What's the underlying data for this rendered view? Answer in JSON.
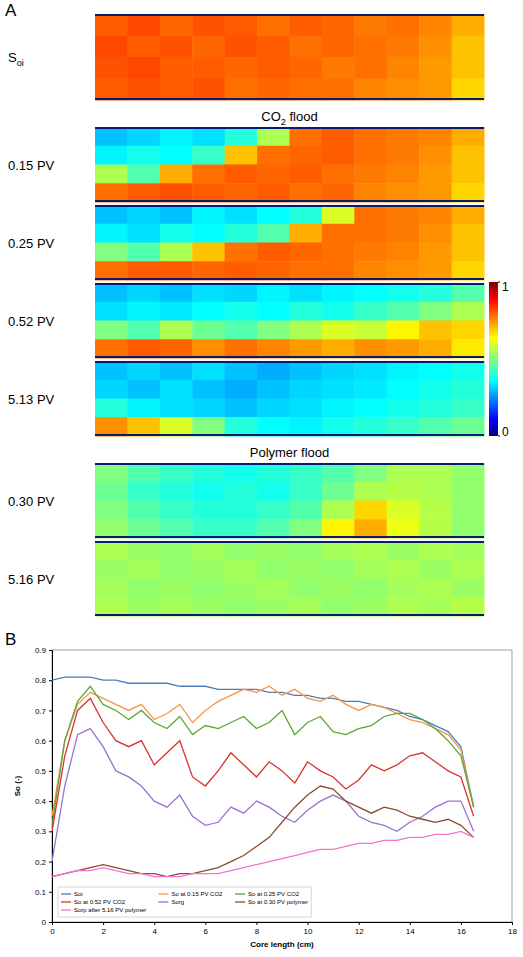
{
  "chart_data": [
    {
      "type": "heatmap",
      "panel_label": "A",
      "colorbar": {
        "range": [
          0,
          1
        ],
        "ticks": [
          0,
          1
        ]
      },
      "groups": [
        {
          "maps": [
            {
              "label": [
                {
                  "text": "S"
                },
                {
                  "text": "oi",
                  "sub": true
                }
              ],
              "cells": [
                [
                  0.8,
                  0.82,
                  0.79,
                  0.81,
                  0.8,
                  0.78,
                  0.8,
                  0.79,
                  0.77,
                  0.78,
                  0.76,
                  0.72
                ],
                [
                  0.82,
                  0.8,
                  0.81,
                  0.79,
                  0.81,
                  0.8,
                  0.78,
                  0.79,
                  0.78,
                  0.77,
                  0.75,
                  0.7
                ],
                [
                  0.81,
                  0.82,
                  0.8,
                  0.8,
                  0.79,
                  0.8,
                  0.79,
                  0.77,
                  0.78,
                  0.76,
                  0.74,
                  0.7
                ],
                [
                  0.8,
                  0.81,
                  0.8,
                  0.81,
                  0.78,
                  0.79,
                  0.78,
                  0.78,
                  0.76,
                  0.75,
                  0.74,
                  0.68
                ]
              ]
            }
          ]
        },
        {
          "title": [
            {
              "text": "CO"
            },
            {
              "text": "2",
              "sub": true
            },
            {
              "text": " flood"
            }
          ],
          "maps": [
            {
              "label": [
                {
                  "text": "0.15 PV"
                }
              ],
              "cells": [
                [
                  0.3,
                  0.32,
                  0.35,
                  0.33,
                  0.4,
                  0.55,
                  0.78,
                  0.8,
                  0.78,
                  0.77,
                  0.76,
                  0.72
                ],
                [
                  0.35,
                  0.38,
                  0.36,
                  0.42,
                  0.7,
                  0.78,
                  0.79,
                  0.8,
                  0.78,
                  0.77,
                  0.75,
                  0.7
                ],
                [
                  0.55,
                  0.45,
                  0.72,
                  0.78,
                  0.8,
                  0.79,
                  0.8,
                  0.78,
                  0.77,
                  0.76,
                  0.74,
                  0.7
                ],
                [
                  0.78,
                  0.8,
                  0.81,
                  0.8,
                  0.79,
                  0.8,
                  0.78,
                  0.79,
                  0.76,
                  0.75,
                  0.74,
                  0.68
                ]
              ]
            },
            {
              "label": [
                {
                  "text": "0.25 PV"
                }
              ],
              "cells": [
                [
                  0.3,
                  0.32,
                  0.3,
                  0.35,
                  0.33,
                  0.36,
                  0.4,
                  0.6,
                  0.78,
                  0.77,
                  0.76,
                  0.72
                ],
                [
                  0.35,
                  0.33,
                  0.38,
                  0.36,
                  0.4,
                  0.45,
                  0.72,
                  0.78,
                  0.78,
                  0.77,
                  0.75,
                  0.7
                ],
                [
                  0.5,
                  0.45,
                  0.55,
                  0.7,
                  0.78,
                  0.8,
                  0.79,
                  0.78,
                  0.77,
                  0.76,
                  0.74,
                  0.7
                ],
                [
                  0.78,
                  0.8,
                  0.8,
                  0.79,
                  0.8,
                  0.79,
                  0.78,
                  0.78,
                  0.76,
                  0.75,
                  0.74,
                  0.68
                ]
              ]
            },
            {
              "label": [
                {
                  "text": "0.52 PV"
                }
              ],
              "cells": [
                [
                  0.3,
                  0.32,
                  0.3,
                  0.33,
                  0.32,
                  0.35,
                  0.33,
                  0.35,
                  0.36,
                  0.38,
                  0.4,
                  0.45
                ],
                [
                  0.33,
                  0.35,
                  0.34,
                  0.36,
                  0.38,
                  0.36,
                  0.4,
                  0.38,
                  0.42,
                  0.45,
                  0.5,
                  0.55
                ],
                [
                  0.5,
                  0.45,
                  0.55,
                  0.48,
                  0.45,
                  0.5,
                  0.55,
                  0.6,
                  0.58,
                  0.65,
                  0.7,
                  0.68
                ],
                [
                  0.78,
                  0.8,
                  0.79,
                  0.75,
                  0.78,
                  0.76,
                  0.74,
                  0.72,
                  0.75,
                  0.74,
                  0.72,
                  0.66
                ]
              ]
            },
            {
              "label": [
                {
                  "text": "5.13 PV"
                }
              ],
              "cells": [
                [
                  0.3,
                  0.32,
                  0.3,
                  0.33,
                  0.3,
                  0.28,
                  0.3,
                  0.32,
                  0.33,
                  0.35,
                  0.36,
                  0.38
                ],
                [
                  0.32,
                  0.3,
                  0.33,
                  0.3,
                  0.28,
                  0.3,
                  0.32,
                  0.33,
                  0.34,
                  0.36,
                  0.38,
                  0.4
                ],
                [
                  0.4,
                  0.35,
                  0.33,
                  0.32,
                  0.3,
                  0.32,
                  0.33,
                  0.35,
                  0.36,
                  0.38,
                  0.4,
                  0.42
                ],
                [
                  0.75,
                  0.7,
                  0.6,
                  0.5,
                  0.4,
                  0.36,
                  0.35,
                  0.38,
                  0.4,
                  0.42,
                  0.45,
                  0.48
                ]
              ]
            }
          ]
        },
        {
          "title": [
            {
              "text": "Polymer flood"
            }
          ],
          "maps": [
            {
              "label": [
                {
                  "text": "0.30 PV"
                }
              ],
              "cells": [
                [
                  0.5,
                  0.45,
                  0.42,
                  0.4,
                  0.38,
                  0.4,
                  0.42,
                  0.45,
                  0.5,
                  0.55,
                  0.55,
                  0.52
                ],
                [
                  0.48,
                  0.42,
                  0.4,
                  0.38,
                  0.4,
                  0.38,
                  0.42,
                  0.48,
                  0.55,
                  0.56,
                  0.55,
                  0.52
                ],
                [
                  0.5,
                  0.45,
                  0.42,
                  0.4,
                  0.4,
                  0.42,
                  0.45,
                  0.55,
                  0.68,
                  0.6,
                  0.56,
                  0.52
                ],
                [
                  0.52,
                  0.48,
                  0.45,
                  0.42,
                  0.42,
                  0.45,
                  0.5,
                  0.65,
                  0.72,
                  0.62,
                  0.56,
                  0.52
                ]
              ]
            },
            {
              "label": [
                {
                  "text": "5.16 PV"
                }
              ],
              "cells": [
                [
                  0.55,
                  0.53,
                  0.52,
                  0.54,
                  0.52,
                  0.53,
                  0.52,
                  0.54,
                  0.55,
                  0.53,
                  0.55,
                  0.54
                ],
                [
                  0.53,
                  0.54,
                  0.52,
                  0.53,
                  0.54,
                  0.52,
                  0.53,
                  0.52,
                  0.54,
                  0.55,
                  0.53,
                  0.55
                ],
                [
                  0.54,
                  0.52,
                  0.53,
                  0.52,
                  0.53,
                  0.54,
                  0.52,
                  0.53,
                  0.52,
                  0.54,
                  0.55,
                  0.53
                ],
                [
                  0.55,
                  0.53,
                  0.54,
                  0.53,
                  0.52,
                  0.53,
                  0.54,
                  0.52,
                  0.53,
                  0.55,
                  0.54,
                  0.56
                ]
              ]
            }
          ]
        }
      ]
    },
    {
      "type": "line",
      "panel_label": "B",
      "x_label": "Core length (cm)",
      "y_label": "So (-)",
      "xlim": [
        0,
        18
      ],
      "xticks": [
        0,
        2,
        4,
        6,
        8,
        10,
        12,
        14,
        16,
        18
      ],
      "ylim": [
        0,
        0.9
      ],
      "yticks": [
        0,
        0.1,
        0.2,
        0.3,
        0.4,
        0.5,
        0.6,
        0.7,
        0.8,
        0.9
      ],
      "grid": false,
      "legend": "lower left",
      "x": [
        0,
        0.5,
        1,
        1.5,
        2,
        2.5,
        3,
        3.5,
        4,
        4.5,
        5,
        5.5,
        6,
        6.5,
        7,
        7.5,
        8,
        8.5,
        9,
        9.5,
        10,
        10.5,
        11,
        11.5,
        12,
        12.5,
        13,
        13.5,
        14,
        14.5,
        15,
        15.5,
        16,
        16.5
      ],
      "series": [
        {
          "name": "Soi",
          "color": "#4a7ebb",
          "values": [
            0.8,
            0.81,
            0.81,
            0.81,
            0.8,
            0.8,
            0.79,
            0.79,
            0.79,
            0.79,
            0.78,
            0.78,
            0.78,
            0.77,
            0.77,
            0.77,
            0.77,
            0.76,
            0.76,
            0.75,
            0.75,
            0.74,
            0.74,
            0.73,
            0.73,
            0.72,
            0.71,
            0.7,
            0.68,
            0.67,
            0.65,
            0.63,
            0.58,
            0.38
          ]
        },
        {
          "name": "So at 0.15 PV CO2",
          "color": "#f79646",
          "values": [
            0.35,
            0.6,
            0.72,
            0.76,
            0.74,
            0.72,
            0.7,
            0.72,
            0.67,
            0.69,
            0.72,
            0.66,
            0.7,
            0.73,
            0.75,
            0.77,
            0.76,
            0.78,
            0.75,
            0.77,
            0.74,
            0.73,
            0.75,
            0.72,
            0.7,
            0.72,
            0.71,
            0.69,
            0.67,
            0.66,
            0.64,
            0.62,
            0.57,
            0.38
          ]
        },
        {
          "name": "So at 0.25 PV CO2",
          "color": "#5aa832",
          "values": [
            0.32,
            0.6,
            0.73,
            0.78,
            0.72,
            0.7,
            0.67,
            0.7,
            0.66,
            0.64,
            0.68,
            0.62,
            0.65,
            0.64,
            0.66,
            0.68,
            0.64,
            0.66,
            0.7,
            0.62,
            0.66,
            0.68,
            0.63,
            0.62,
            0.64,
            0.65,
            0.68,
            0.69,
            0.69,
            0.67,
            0.64,
            0.6,
            0.55,
            0.38
          ]
        },
        {
          "name": "So at 0.52 PV CO2",
          "color": "#d9322e",
          "values": [
            0.3,
            0.55,
            0.7,
            0.74,
            0.66,
            0.6,
            0.58,
            0.6,
            0.52,
            0.56,
            0.6,
            0.48,
            0.45,
            0.5,
            0.56,
            0.52,
            0.48,
            0.53,
            0.5,
            0.46,
            0.53,
            0.5,
            0.48,
            0.44,
            0.47,
            0.52,
            0.5,
            0.52,
            0.55,
            0.56,
            0.53,
            0.5,
            0.48,
            0.35
          ]
        },
        {
          "name": "Sorg",
          "color": "#9b72cf",
          "values": [
            0.2,
            0.45,
            0.62,
            0.64,
            0.58,
            0.5,
            0.48,
            0.45,
            0.4,
            0.38,
            0.42,
            0.35,
            0.32,
            0.33,
            0.38,
            0.36,
            0.4,
            0.38,
            0.35,
            0.33,
            0.37,
            0.4,
            0.42,
            0.4,
            0.35,
            0.33,
            0.32,
            0.3,
            0.33,
            0.35,
            0.38,
            0.4,
            0.4,
            0.3
          ]
        },
        {
          "name": "So at 0.30 PV polymer",
          "color": "#8c4a2f",
          "values": [
            0.15,
            0.16,
            0.17,
            0.18,
            0.19,
            0.18,
            0.17,
            0.16,
            0.16,
            0.15,
            0.16,
            0.16,
            0.17,
            0.18,
            0.2,
            0.22,
            0.25,
            0.28,
            0.33,
            0.38,
            0.42,
            0.45,
            0.44,
            0.4,
            0.38,
            0.36,
            0.38,
            0.37,
            0.35,
            0.34,
            0.33,
            0.34,
            0.32,
            0.28
          ]
        },
        {
          "name": "Sorp after 5.16 PV polymer",
          "color": "#f472d0",
          "values": [
            0.15,
            0.16,
            0.17,
            0.17,
            0.18,
            0.17,
            0.16,
            0.16,
            0.15,
            0.15,
            0.15,
            0.16,
            0.16,
            0.16,
            0.17,
            0.18,
            0.19,
            0.2,
            0.21,
            0.22,
            0.23,
            0.24,
            0.24,
            0.25,
            0.26,
            0.26,
            0.27,
            0.27,
            0.28,
            0.28,
            0.29,
            0.29,
            0.3,
            0.28
          ]
        }
      ]
    }
  ]
}
